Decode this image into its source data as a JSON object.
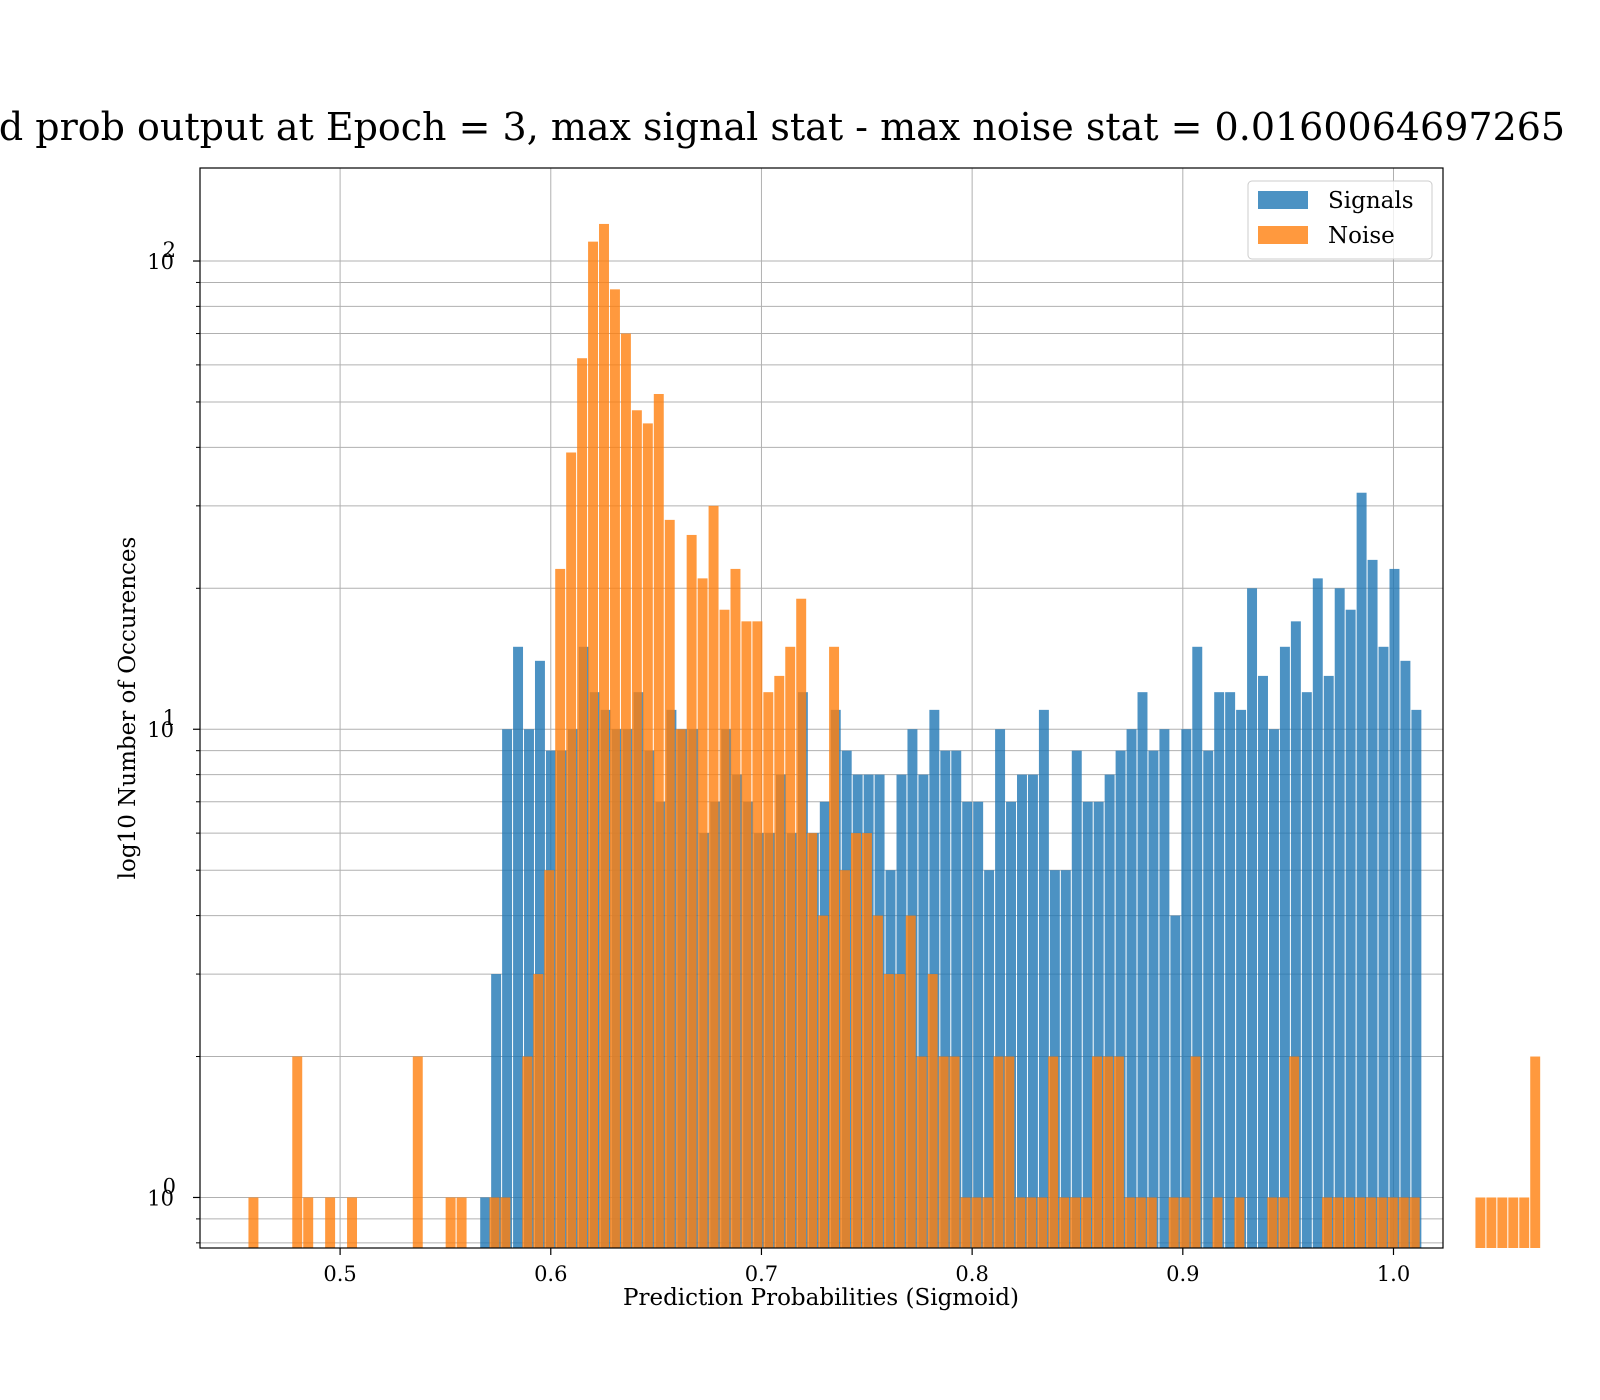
{
  "chart_data": {
    "type": "bar",
    "subtype": "histogram",
    "title": "d prob output at Epoch = 3, max signal stat - max noise stat = 0.0160064697265",
    "xlabel": "Prediction Probabilities (Sigmoid)",
    "ylabel": "log10 Number of Occurences",
    "xlim": [
      0.4335,
      1.0235
    ],
    "ylim": [
      0.78,
      158
    ],
    "yscale": "log",
    "grid": true,
    "legend_position": "top-right",
    "x_ticks": [
      {
        "value": 0.5,
        "label": "0.5"
      },
      {
        "value": 0.6,
        "label": "0.6"
      },
      {
        "value": 0.7,
        "label": "0.7"
      },
      {
        "value": 0.8,
        "label": "0.8"
      },
      {
        "value": 0.9,
        "label": "0.9"
      },
      {
        "value": 1.0,
        "label": "1.0"
      }
    ],
    "y_ticks": [
      {
        "value": 1,
        "base": "10",
        "exp": "0"
      },
      {
        "value": 10,
        "base": "10",
        "exp": "1"
      },
      {
        "value": 100,
        "base": "10",
        "exp": "2"
      }
    ],
    "series": [
      {
        "name": "Signals",
        "color": "#1f77b4",
        "bin_start": 0.5665,
        "bin_width": 0.0052,
        "values": [
          1,
          3,
          10,
          15,
          10,
          14,
          9,
          9,
          10,
          15,
          12,
          11,
          10,
          10,
          12,
          9,
          7,
          11,
          10,
          10,
          6,
          7,
          10,
          8,
          7,
          6,
          6,
          8,
          6,
          12,
          6,
          7,
          11,
          9,
          8,
          8,
          8,
          5,
          8,
          10,
          8,
          11,
          9,
          9,
          7,
          7,
          5,
          10,
          7,
          8,
          8,
          11,
          5,
          5,
          9,
          7,
          7,
          8,
          9,
          10,
          12,
          9,
          10,
          4,
          10,
          15,
          9,
          12,
          12,
          11,
          20,
          13,
          10,
          15,
          17,
          12,
          21,
          13,
          20,
          18,
          32,
          23,
          15,
          22,
          14,
          11
        ]
      },
      {
        "name": "Noise",
        "color": "#ff7f0e",
        "bin_start": 0.4565,
        "bin_width": 0.0052,
        "values": [
          1,
          0,
          0,
          0,
          2,
          1,
          0,
          1,
          0,
          1,
          0,
          0,
          0,
          0,
          0,
          2,
          0,
          0,
          1,
          1,
          0,
          0,
          1,
          1,
          0,
          2,
          3,
          5,
          22,
          39,
          62,
          110,
          120,
          87,
          70,
          48,
          45,
          52,
          28,
          10,
          26,
          21,
          30,
          18,
          22,
          17,
          17,
          12,
          13,
          15,
          19,
          6,
          4,
          15,
          5,
          6,
          6,
          4,
          3,
          3,
          4,
          2,
          3,
          2,
          2,
          1,
          1,
          1,
          2,
          2,
          1,
          1,
          1,
          2,
          1,
          1,
          1,
          2,
          2,
          2,
          1,
          1,
          1,
          0,
          1,
          1,
          2,
          0,
          1,
          0,
          1,
          0,
          0,
          1,
          1,
          2,
          0,
          0,
          1,
          1,
          1,
          1,
          1,
          1,
          1,
          1,
          1,
          0,
          0,
          0,
          0,
          0,
          1,
          1,
          1,
          1,
          1,
          2
        ]
      }
    ]
  }
}
